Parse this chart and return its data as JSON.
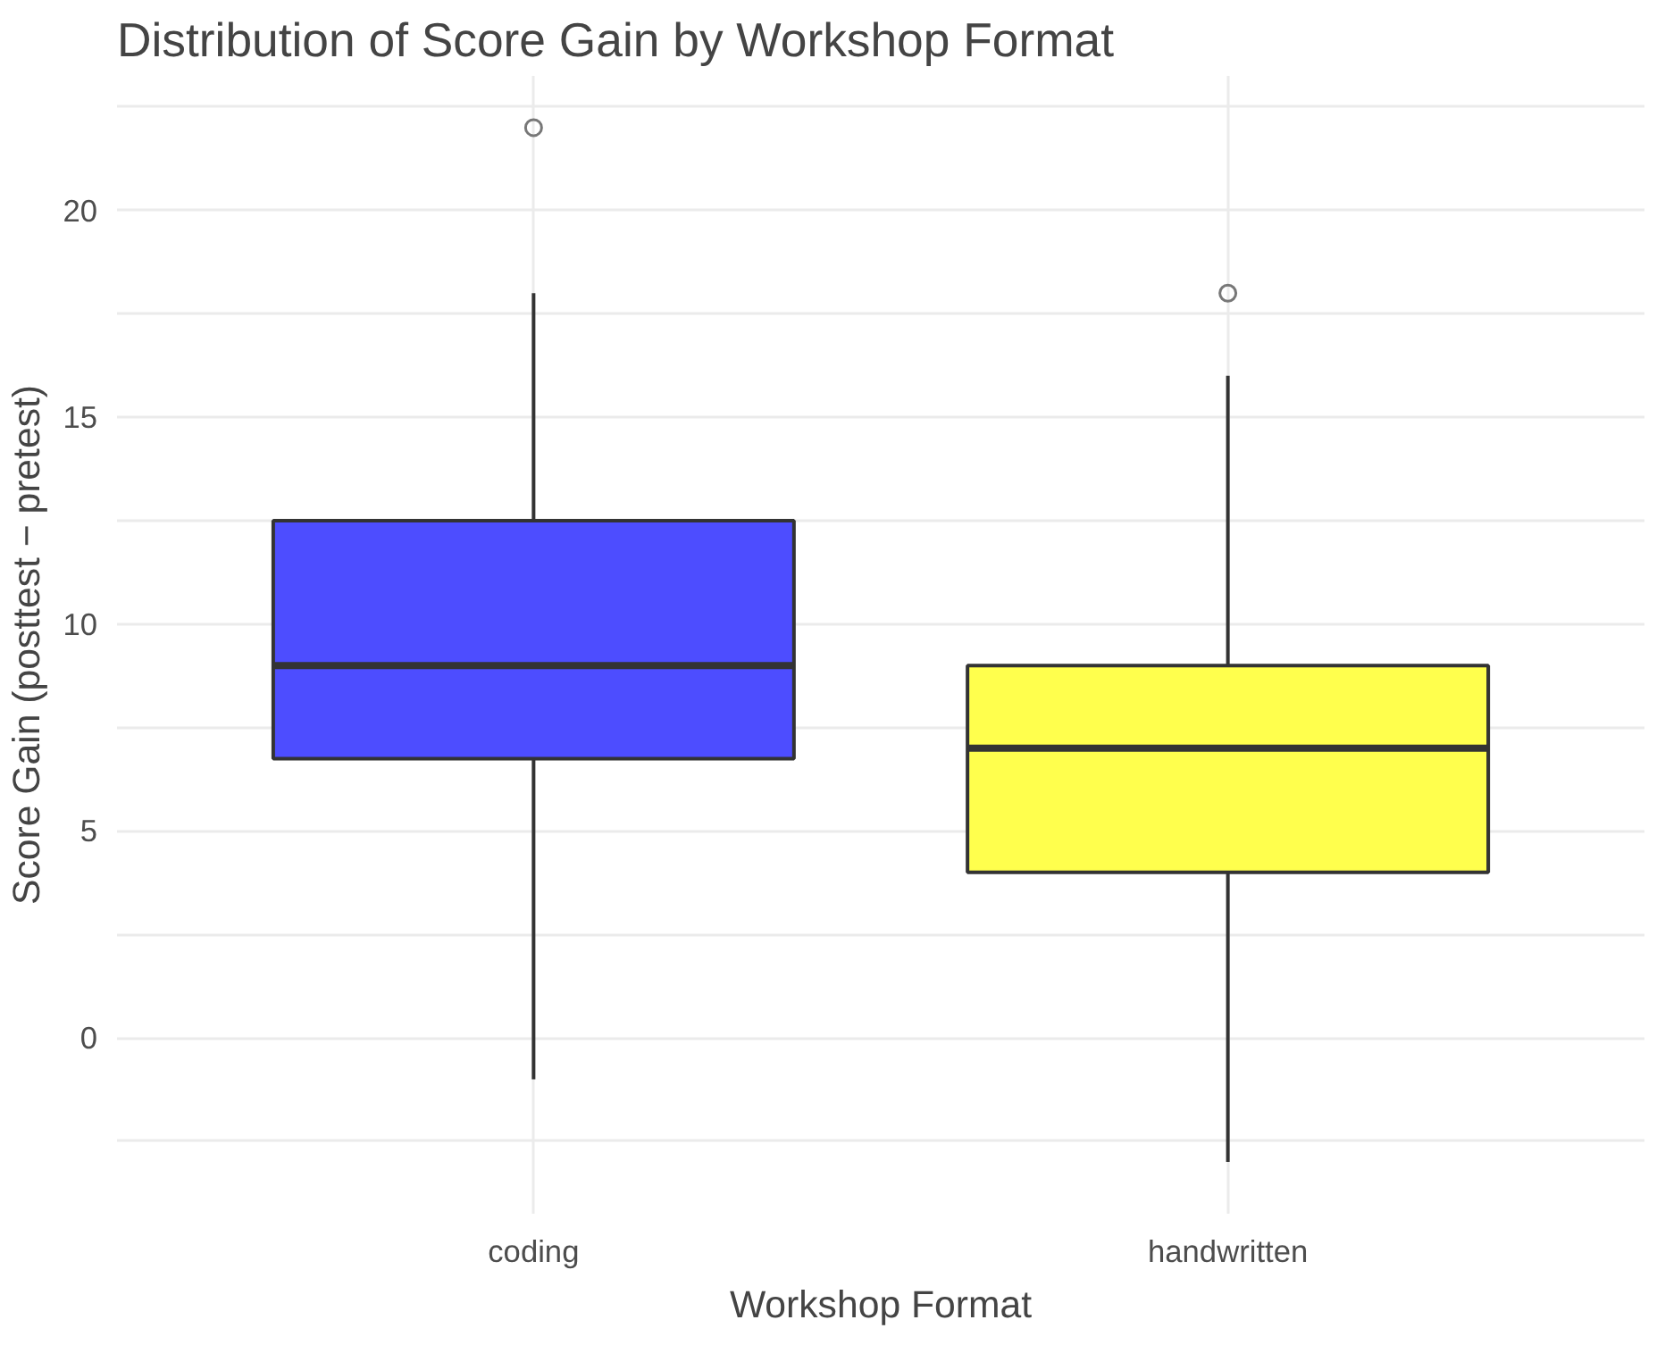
{
  "chart_data": {
    "type": "box",
    "title": "Distribution of Score Gain by Workshop Format",
    "xlabel": "Workshop Format",
    "ylabel": "Score Gain (posttest − pretest)",
    "categories": [
      "coding",
      "handwritten"
    ],
    "boxes": [
      {
        "low": -1,
        "q1": 6.75,
        "median": 9,
        "q3": 12.5,
        "high": 18,
        "outliers": [
          22
        ]
      },
      {
        "low": -3,
        "q1": 4,
        "median": 7,
        "q3": 9,
        "high": 16,
        "outliers": [
          18
        ]
      }
    ],
    "colors": [
      "#4d4dff",
      "#ffff4d"
    ],
    "ylim": [
      -4.25,
      23.25
    ],
    "yticks": [
      {
        "value": -2.5,
        "label": null
      },
      0,
      {
        "value": 2.5,
        "label": null
      },
      5,
      {
        "value": 7.5,
        "label": null
      },
      10,
      {
        "value": 12.5,
        "label": null
      },
      15,
      {
        "value": 17.5,
        "label": null
      },
      20,
      {
        "value": 22.5,
        "label": null
      }
    ],
    "grid": true
  }
}
